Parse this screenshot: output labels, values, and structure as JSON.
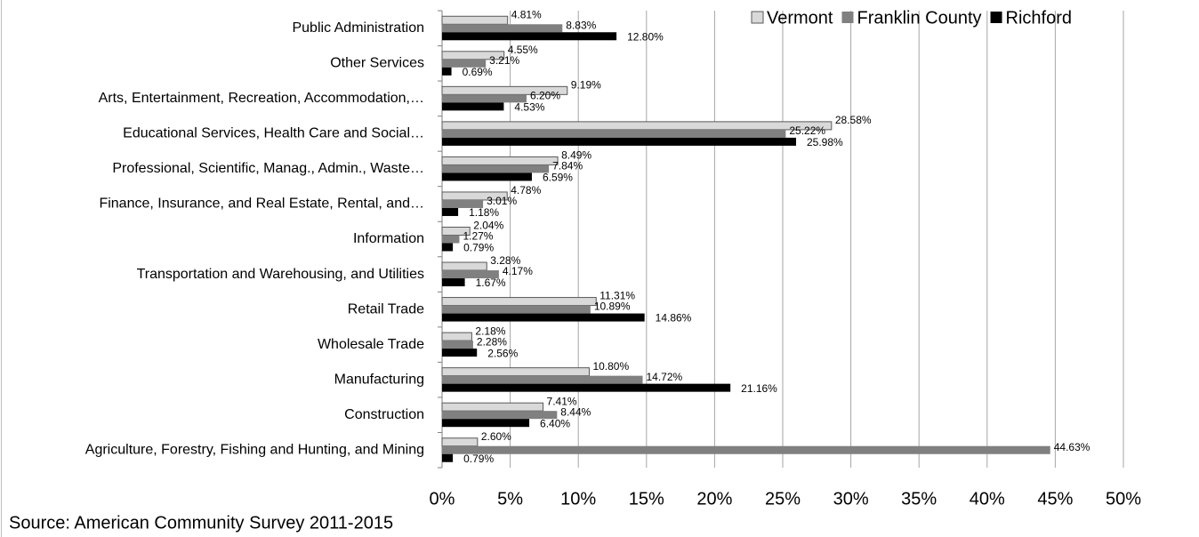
{
  "chart_data": {
    "type": "hbar",
    "categories": [
      "Public Administration",
      "Other Services",
      "Arts, Entertainment, Recreation, Accommodation,…",
      "Educational Services, Health Care and Social…",
      "Professional, Scientific, Manag., Admin., Waste…",
      "Finance, Insurance, and Real Estate, Rental, and…",
      "Information",
      "Transportation and Warehousing, and Utilities",
      "Retail Trade",
      "Wholesale Trade",
      "Manufacturing",
      "Construction",
      "Agriculture, Forestry, Fishing and Hunting, and Mining"
    ],
    "series": [
      {
        "name": "Vermont",
        "color": "#d9d9d9",
        "stroke": "#595959",
        "values": [
          4.81,
          4.55,
          9.19,
          28.58,
          8.49,
          4.78,
          2.04,
          3.28,
          11.31,
          2.18,
          10.8,
          7.41,
          2.6
        ],
        "value_labels": [
          "4.81%",
          "4.55%",
          "9.19%",
          "28.58%",
          "8.49%",
          "4.78%",
          "2.04%",
          "3.28%",
          "11.31%",
          "2.18%",
          "10.80%",
          "7.41%",
          "2.60%"
        ]
      },
      {
        "name": "Franklin County",
        "color": "#808080",
        "values": [
          8.83,
          3.21,
          6.2,
          25.22,
          7.84,
          3.01,
          1.27,
          4.17,
          10.89,
          2.28,
          14.72,
          8.44,
          44.63
        ],
        "value_labels": [
          "8.83%",
          "3.21%",
          "6.20%",
          "25.22%",
          "7.84%",
          "3.01%",
          "1.27%",
          "4.17%",
          "10.89%",
          "2.28%",
          "14.72%",
          "8.44%",
          "44.63%"
        ]
      },
      {
        "name": "Richford",
        "color": "#000000",
        "values": [
          12.8,
          0.69,
          4.53,
          25.98,
          6.59,
          1.18,
          0.79,
          1.67,
          14.86,
          2.56,
          21.16,
          6.4,
          0.79
        ],
        "value_labels": [
          "12.80%",
          "0.69%",
          "4.53%",
          "25.98%",
          "6.59%",
          "1.18%",
          "0.79%",
          "1.67%",
          "14.86%",
          "2.56%",
          "21.16%",
          "6.40%",
          "0.79%"
        ]
      }
    ],
    "xlim": [
      0,
      50
    ],
    "xticks": [
      {
        "value": 0,
        "label": "0%"
      },
      {
        "value": 5,
        "label": "5%"
      },
      {
        "value": 10,
        "label": "10%"
      },
      {
        "value": 15,
        "label": "15%"
      },
      {
        "value": 20,
        "label": "20%"
      },
      {
        "value": 25,
        "label": "25%"
      },
      {
        "value": 30,
        "label": "30%"
      },
      {
        "value": 35,
        "label": "35%"
      },
      {
        "value": 40,
        "label": "40%"
      },
      {
        "value": 45,
        "label": "45%"
      },
      {
        "value": 50,
        "label": "50%"
      }
    ],
    "grid": true,
    "legend": "top-right",
    "source": "Source: American Community Survey 2011-2015"
  }
}
